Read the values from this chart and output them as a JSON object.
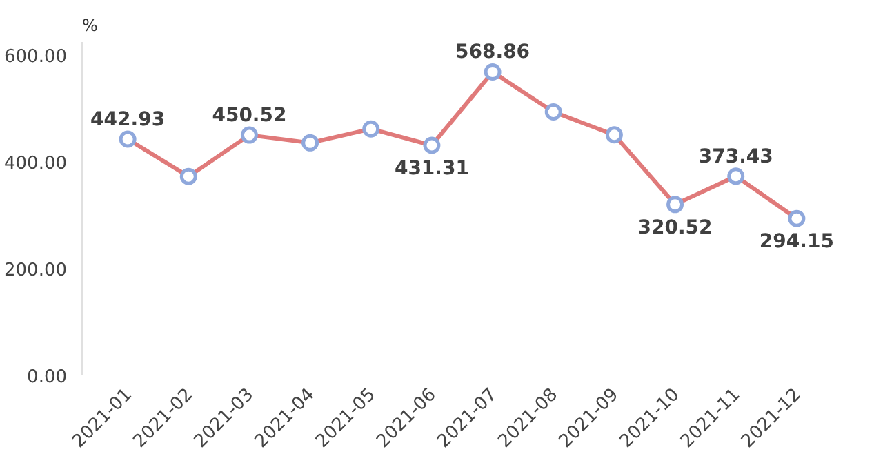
{
  "chart_data": {
    "type": "line",
    "ylabel": "%",
    "categories": [
      "2021-01",
      "2021-02",
      "2021-03",
      "2021-04",
      "2021-05",
      "2021-06",
      "2021-07",
      "2021-08",
      "2021-09",
      "2021-10",
      "2021-11",
      "2021-12"
    ],
    "series": [
      {
        "color": "#e07a7a",
        "values": [
          442.93,
          373,
          450.52,
          436,
          462,
          431.31,
          568.86,
          494,
          451,
          320.52,
          373.43,
          294.15
        ],
        "value_labels": [
          "442.93",
          null,
          "450.52",
          null,
          null,
          "431.31",
          "568.86",
          null,
          null,
          "320.52",
          "373.43",
          "294.15"
        ]
      }
    ],
    "ylim": [
      0,
      625
    ],
    "yticks": [
      {
        "value": 0,
        "label": "0.00"
      },
      {
        "value": 200,
        "label": "200.00"
      },
      {
        "value": 400,
        "label": "400.00"
      },
      {
        "value": 600,
        "label": "600.00"
      }
    ],
    "grid": false,
    "marker": "circle",
    "line_style": "solid"
  }
}
